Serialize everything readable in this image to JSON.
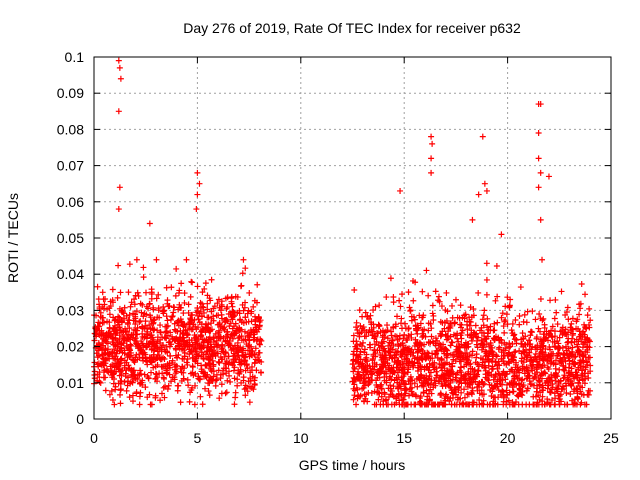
{
  "chart_data": {
    "type": "scatter",
    "title": "Day 276 of 2019, Rate Of TEC Index for receiver p632",
    "xlabel": "GPS time / hours",
    "ylabel": "ROTI / TECUs",
    "xlim": [
      0,
      25
    ],
    "ylim": [
      0,
      0.1
    ],
    "grid": true,
    "legend": "none",
    "marker": "plus",
    "color": "#ff0000",
    "x_ticks": [
      0,
      5,
      10,
      15,
      20,
      25
    ],
    "x_tick_labels": [
      "0",
      "5",
      "10",
      "15",
      "20",
      "25"
    ],
    "y_ticks": [
      0,
      0.01,
      0.02,
      0.03,
      0.04,
      0.05,
      0.06,
      0.07,
      0.08,
      0.09,
      0.1
    ],
    "y_tick_labels": [
      "0",
      "0.01",
      "0.02",
      "0.03",
      "0.04",
      "0.05",
      "0.06",
      "0.07",
      "0.08",
      "0.09",
      "0.1"
    ],
    "series": [
      {
        "name": "ROTI",
        "segments": [
          {
            "start": 0.0,
            "end": 8.1,
            "baseline": 0.02
          },
          {
            "start": 12.5,
            "end": 24.0,
            "baseline": 0.015
          }
        ],
        "peaks": [
          {
            "x": 1.2,
            "y": 0.099
          },
          {
            "x": 1.25,
            "y": 0.097
          },
          {
            "x": 1.3,
            "y": 0.094
          },
          {
            "x": 1.2,
            "y": 0.085
          },
          {
            "x": 1.25,
            "y": 0.064
          },
          {
            "x": 1.2,
            "y": 0.058
          },
          {
            "x": 2.7,
            "y": 0.054
          },
          {
            "x": 5.0,
            "y": 0.068
          },
          {
            "x": 5.1,
            "y": 0.065
          },
          {
            "x": 5.0,
            "y": 0.062
          },
          {
            "x": 4.95,
            "y": 0.058
          },
          {
            "x": 14.8,
            "y": 0.063
          },
          {
            "x": 16.3,
            "y": 0.078
          },
          {
            "x": 16.35,
            "y": 0.076
          },
          {
            "x": 16.3,
            "y": 0.072
          },
          {
            "x": 16.3,
            "y": 0.068
          },
          {
            "x": 18.8,
            "y": 0.078
          },
          {
            "x": 18.9,
            "y": 0.065
          },
          {
            "x": 19.0,
            "y": 0.063
          },
          {
            "x": 18.6,
            "y": 0.062
          },
          {
            "x": 18.3,
            "y": 0.055
          },
          {
            "x": 21.5,
            "y": 0.087
          },
          {
            "x": 21.6,
            "y": 0.087
          },
          {
            "x": 21.5,
            "y": 0.079
          },
          {
            "x": 21.5,
            "y": 0.072
          },
          {
            "x": 21.6,
            "y": 0.068
          },
          {
            "x": 21.5,
            "y": 0.064
          },
          {
            "x": 22.0,
            "y": 0.067
          },
          {
            "x": 21.6,
            "y": 0.055
          },
          {
            "x": 19.7,
            "y": 0.051
          }
        ]
      }
    ]
  }
}
